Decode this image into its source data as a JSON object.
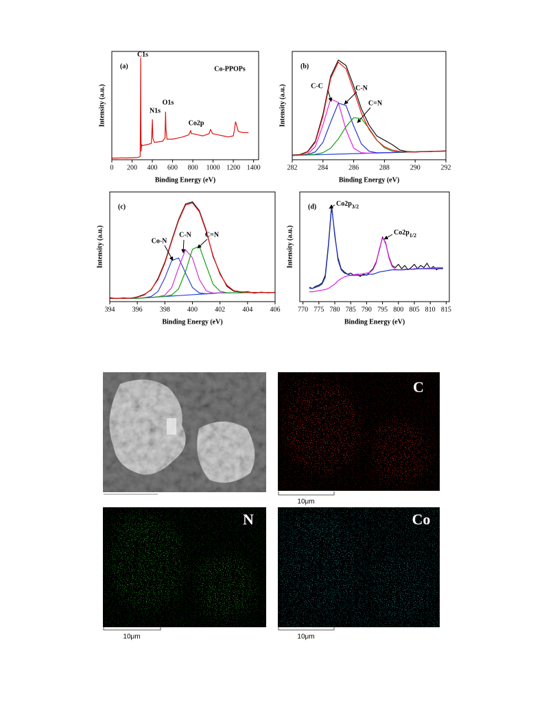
{
  "chart_data": [
    {
      "type": "line",
      "panel_label": "(a)",
      "xlabel": "Binding Energy (eV)",
      "ylabel": "Intensity (a.u.)",
      "xlim": [
        0,
        1450
      ],
      "ylim": [
        0,
        100
      ],
      "xticks": [
        0,
        200,
        400,
        600,
        800,
        1000,
        1200,
        1400
      ],
      "annotations": [
        "C1s",
        "N1s",
        "O1s",
        "Co2p",
        "Co-PPOPs"
      ],
      "x": [
        0,
        50,
        100,
        150,
        200,
        250,
        270,
        280,
        283,
        285,
        287,
        290,
        295,
        300,
        350,
        390,
        398,
        401,
        405,
        420,
        500,
        525,
        531,
        535,
        545,
        600,
        650,
        700,
        760,
        775,
        780,
        785,
        800,
        850,
        900,
        960,
        975,
        985,
        995,
        1050,
        1100,
        1150,
        1200,
        1210,
        1222,
        1232,
        1250,
        1300,
        1350
      ],
      "series": [
        {
          "color": "#dd1111",
          "values": [
            1.5,
            1.5,
            1.7,
            1.6,
            1.8,
            2,
            2.5,
            3,
            40,
            94,
            35,
            8,
            14,
            13,
            14,
            15,
            30,
            37,
            20,
            16,
            17,
            20,
            44,
            28,
            19,
            19,
            20,
            21,
            23,
            26,
            27,
            24,
            24,
            23,
            22,
            24,
            28,
            26,
            24,
            23,
            22,
            21,
            22,
            27,
            35,
            32,
            26,
            25,
            25
          ]
        }
      ]
    },
    {
      "type": "line",
      "panel_label": "(b)",
      "xlabel": "Binding Energy (eV)",
      "ylabel": "Intensity (a.u.)",
      "xlim": [
        282,
        292
      ],
      "ylim": [
        0,
        100
      ],
      "xticks": [
        282,
        284,
        286,
        288,
        290,
        292
      ],
      "x": [
        282,
        282.5,
        283,
        283.5,
        284,
        284.5,
        285,
        285.5,
        286,
        286.5,
        287,
        287.5,
        288,
        288.5,
        289,
        289.5,
        290,
        290.5,
        291,
        291.5,
        292
      ],
      "series": [
        {
          "color": "#2244dd",
          "values": [
            4,
            4.2,
            4.4,
            4.6,
            4.8,
            5,
            5.2,
            5.4,
            5.6,
            5.8,
            6,
            6.2,
            6.4,
            6.6,
            6.8,
            7,
            7.2,
            7.4,
            7.6,
            7.8,
            8
          ]
        },
        {
          "name": "C-C",
          "color": "#e020e0",
          "values": [
            4,
            4.3,
            5.4,
            11.9,
            32.1,
            56.1,
            52.9,
            27.6,
            10.7,
            6.4,
            6,
            6.2,
            6.4,
            6.6,
            6.8,
            7,
            7.2,
            7.4,
            7.6,
            7.8,
            8
          ]
        },
        {
          "name": "C-N",
          "color": "#2233cc",
          "values": [
            4,
            4.2,
            4.8,
            7.2,
            16.1,
            34.7,
            52.2,
            50.1,
            31.1,
            14.6,
            7.8,
            6.4,
            6.4,
            6.6,
            6.8,
            7,
            7.2,
            7.4,
            7.6,
            7.8,
            8
          ]
        },
        {
          "name": "C=N",
          "color": "#11a011",
          "values": [
            4,
            4.2,
            4.5,
            5,
            6.5,
            10.7,
            19.2,
            30.5,
            38.8,
            38,
            28.9,
            18.2,
            11,
            7.9,
            7.1,
            7,
            7.2,
            7.4,
            7.6,
            7.8,
            8
          ]
        },
        {
          "color": "#111111",
          "values": [
            4.3,
            4.8,
            7.5,
            17,
            42,
            77,
            92,
            87,
            68,
            47,
            32,
            22,
            18,
            14,
            9,
            7.5,
            7.3,
            7.5,
            7.7,
            7.9,
            8.1
          ]
        },
        {
          "color": "#ee1111",
          "values": [
            4,
            4.5,
            7,
            16,
            40,
            75,
            90,
            84,
            64,
            43,
            28,
            18,
            12,
            9,
            7.6,
            7.2,
            7.2,
            7.4,
            7.6,
            7.8,
            8
          ]
        }
      ]
    },
    {
      "type": "line",
      "panel_label": "(c)",
      "xlabel": "Binding Energy (eV)",
      "ylabel": "Intensity (a.u.)",
      "xlim": [
        394,
        406
      ],
      "ylim": [
        0,
        100
      ],
      "xticks": [
        394,
        396,
        398,
        400,
        402,
        404,
        406
      ],
      "x": [
        394,
        394.5,
        395,
        395.5,
        396,
        396.5,
        397,
        397.5,
        398,
        398.5,
        399,
        399.5,
        400,
        400.5,
        401,
        401.5,
        402,
        402.5,
        403,
        403.5,
        404,
        404.5,
        405,
        405.5,
        406
      ],
      "series": [
        {
          "color": "#2244dd",
          "values": [
            3,
            3,
            3,
            3,
            3,
            3.4,
            3.8,
            4.3,
            4.7,
            5.1,
            5.5,
            5.9,
            6.3,
            6.7,
            7.1,
            7.5,
            8,
            8,
            8.1,
            8.1,
            8.2,
            8.2,
            8.3,
            8.3,
            8.3
          ]
        },
        {
          "name": "Co-N",
          "color": "#3344cc",
          "values": [
            3,
            3,
            3,
            3,
            3,
            3.5,
            4.6,
            9.2,
            21.6,
            37.5,
            39.8,
            26.1,
            12.9,
            7.9,
            7.2,
            7.5,
            8,
            8,
            8.1,
            8.1,
            8.2,
            8.2,
            8.3,
            8.3,
            8.3
          ]
        },
        {
          "name": "C-N",
          "color": "#d030d0",
          "values": [
            3,
            3,
            3,
            3,
            3,
            3.4,
            3.8,
            4.4,
            5.9,
            12.9,
            31,
            47.3,
            39.9,
            20.3,
            9.9,
            7.8,
            8,
            8,
            8.1,
            8.1,
            8.2,
            8.2,
            8.3,
            8.3,
            8.3
          ]
        },
        {
          "name": "C=N",
          "color": "#11a011",
          "values": [
            3,
            3,
            3,
            3,
            3,
            3.4,
            3.8,
            4.3,
            4.8,
            6.1,
            11.7,
            27.5,
            47.7,
            50.6,
            32.9,
            15.9,
            9.5,
            8.1,
            8.1,
            8.1,
            8.2,
            8.2,
            8.3,
            8.3,
            8.3
          ]
        },
        {
          "color": "#111111",
          "values": [
            3.5,
            2.8,
            3.4,
            3.1,
            4.3,
            6.5,
            10.6,
            21,
            36,
            56,
            75,
            89,
            91,
            83,
            65,
            41,
            26,
            14,
            9.5,
            8.7,
            9,
            7.8,
            8.6,
            8,
            8.5
          ]
        },
        {
          "color": "#ee1111",
          "values": [
            3,
            3,
            3,
            3.2,
            4,
            6,
            11,
            20,
            35,
            55,
            74,
            88,
            90,
            82,
            64,
            42,
            25,
            15,
            10,
            9,
            8.5,
            8.3,
            8.3,
            8.3,
            8.3
          ]
        }
      ]
    },
    {
      "type": "line",
      "panel_label": "(d)",
      "xlabel": "Binding Energy (eV)",
      "ylabel": "Intensity (a.u.)",
      "xlim": [
        769,
        816
      ],
      "ylim": [
        0,
        100
      ],
      "xticks": [
        770,
        775,
        780,
        785,
        790,
        795,
        800,
        805,
        810,
        815
      ],
      "annotations": [
        {
          "text": "Co2p",
          "sub": "3/2"
        },
        {
          "text": "Co2p",
          "sub": "1/2"
        }
      ],
      "x": [
        772,
        773,
        774,
        775,
        776,
        777,
        778,
        779,
        780,
        781,
        782,
        783,
        784,
        785,
        786,
        787,
        788,
        789,
        790,
        791,
        792,
        793,
        794,
        795,
        796,
        797,
        798,
        799,
        800,
        801,
        802,
        803,
        804,
        805,
        806,
        807,
        808,
        809,
        810,
        811,
        812,
        813,
        814
      ],
      "series": [
        {
          "color": "#111111",
          "values": [
            13,
            12,
            14,
            15,
            17,
            24,
            52,
            88,
            60,
            40,
            30,
            27,
            25,
            26,
            24,
            25,
            23,
            25,
            24,
            27,
            30,
            36,
            47,
            59,
            53,
            41,
            33,
            31,
            34,
            30,
            33,
            29,
            31,
            34,
            30,
            33,
            31,
            35,
            30,
            32,
            29,
            31,
            30
          ]
        },
        {
          "color": "#e020e0",
          "values": [
            9,
            9,
            9.5,
            10,
            10.5,
            11,
            12,
            14,
            16,
            19,
            21,
            22.5,
            23.5,
            24,
            24.5,
            25,
            25,
            25.5,
            26,
            26.5,
            29,
            35,
            48,
            58,
            54,
            40,
            32,
            29.5,
            29,
            29,
            29,
            29.5,
            29.5,
            30,
            30,
            30,
            30,
            30.5,
            30.5,
            30.5,
            31,
            31,
            31
          ]
        },
        {
          "color": "#2233cc",
          "values": [
            12,
            12,
            13,
            14,
            16,
            22,
            50,
            86,
            62,
            38,
            29,
            26,
            25,
            24,
            24,
            24,
            24,
            24,
            24.5,
            25,
            25,
            26,
            27,
            27.5,
            28,
            28.5,
            29,
            29,
            29,
            29,
            29.5,
            29.5,
            29.5,
            29.5,
            30,
            30,
            30,
            30,
            30,
            30,
            30,
            30,
            30
          ]
        }
      ]
    }
  ],
  "images": [
    {
      "label": "C",
      "scale_bar": "10μm"
    },
    {
      "label": "N",
      "scale_bar": "10μm"
    },
    {
      "label": "Co",
      "scale_bar": "10μm"
    }
  ]
}
